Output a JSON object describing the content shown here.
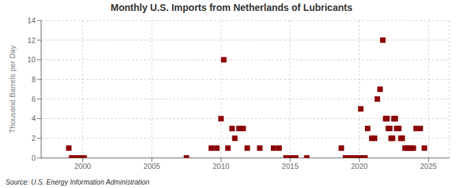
{
  "chart_data": {
    "type": "scatter",
    "title": "Monthly U.S. Imports from Netherlands of Lubricants",
    "y_label": "Thousand Barrels per Day",
    "annotations": [
      "Source: U.S. Energy Information Administration"
    ],
    "color": "#8b0000",
    "marker": "square",
    "grid": true,
    "xlim": [
      1997.0,
      2026.5
    ],
    "ylim": [
      0,
      14
    ],
    "xticks": [
      2000,
      2005,
      2010,
      2015,
      2020,
      2025
    ],
    "yticks": [
      0,
      2,
      4,
      6,
      8,
      10,
      12,
      14
    ],
    "x": [
      1999.0,
      1999.2,
      1999.5,
      1999.8,
      2000.1,
      2007.5,
      2009.3,
      2009.7,
      2010.0,
      2010.2,
      2010.5,
      2010.8,
      2011.0,
      2011.3,
      2011.6,
      2011.9,
      2012.8,
      2013.8,
      2014.2,
      2014.7,
      2015.1,
      2015.4,
      2016.2,
      2018.7,
      2019.0,
      2019.3,
      2019.5,
      2019.7,
      2019.9,
      2020.0,
      2020.2,
      2020.4,
      2020.1,
      2020.6,
      2020.9,
      2021.1,
      2021.3,
      2021.5,
      2021.7,
      2021.9,
      2022.0,
      2022.1,
      2022.2,
      2022.3,
      2022.4,
      2022.5,
      2022.6,
      2022.7,
      2022.85,
      2023.0,
      2023.1,
      2023.3,
      2023.5,
      2023.7,
      2023.9,
      2024.1,
      2024.4,
      2024.7
    ],
    "values": [
      1,
      0,
      0,
      0,
      0,
      0,
      1,
      1,
      4,
      10,
      1,
      3,
      2,
      3,
      3,
      1,
      1,
      1,
      1,
      0,
      0,
      0,
      0,
      1,
      0,
      0,
      0,
      0,
      0,
      0,
      0,
      0,
      5,
      3,
      2,
      2,
      6,
      7,
      12,
      4,
      4,
      3,
      3,
      2,
      2,
      4,
      4,
      3,
      3,
      2,
      2,
      1,
      1,
      1,
      1,
      3,
      3,
      1
    ]
  }
}
